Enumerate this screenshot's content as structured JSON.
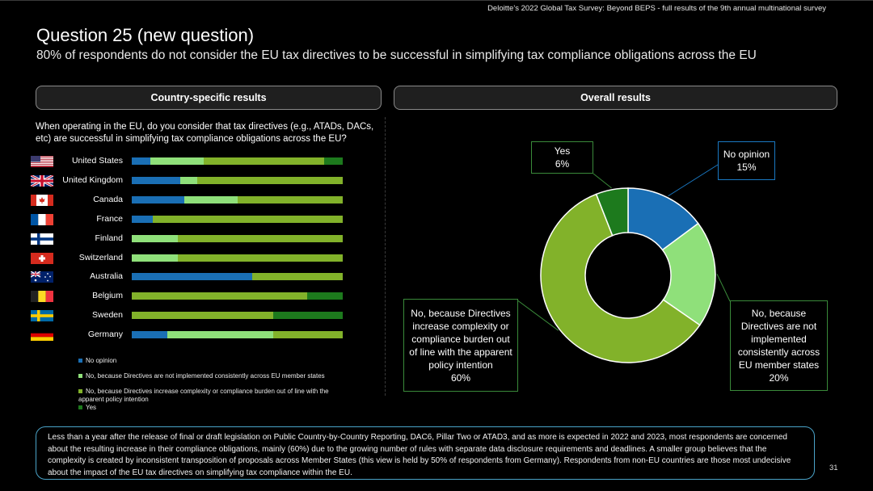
{
  "header": {
    "source": "Deloitte’s 2022 Global Tax Survey: Beyond BEPS  - full results of the 9th annual multinational survey",
    "title": "Question 25 (new question)",
    "subtitle": "80% of respondents do not consider the EU tax directives to be successful in simplifying tax compliance obligations across the EU"
  },
  "left_panel": {
    "heading": "Country-specific results",
    "question": "When operating in the EU, do you consider that tax directives (e.g., ATADs, DACs, etc) are successful in simplifying tax compliance obligations across the EU?"
  },
  "right_panel": {
    "heading": "Overall results"
  },
  "colors": {
    "no_opinion": "#1a6fb5",
    "not_implemented": "#8fe07a",
    "complexity": "#82b22a",
    "yes": "#1d7a1d"
  },
  "chart_data": [
    {
      "type": "bar",
      "orientation": "horizontal",
      "stacked": "100%",
      "categories": [
        "United States",
        "United Kingdom",
        "Canada",
        "France",
        "Finland",
        "Switzerland",
        "Australia",
        "Belgium",
        "Sweden",
        "Germany"
      ],
      "flags": [
        "us-flag-icon",
        "uk-flag-icon",
        "canada-flag-icon",
        "france-flag-icon",
        "finland-flag-icon",
        "switzerland-flag-icon",
        "australia-flag-icon",
        "belgium-flag-icon",
        "sweden-flag-icon",
        "germany-flag-icon"
      ],
      "series": [
        {
          "name": "No opinion",
          "key": "no_opinion",
          "values": [
            9,
            23,
            25,
            10,
            0,
            0,
            57,
            0,
            0,
            17
          ]
        },
        {
          "name": "No, because Directives are not implemented consistently across EU member states",
          "key": "not_implemented",
          "values": [
            25,
            8,
            25,
            0,
            22,
            22,
            0,
            0,
            0,
            50
          ]
        },
        {
          "name": "No, because Directives increase complexity or compliance burden out of line with the apparent policy intention",
          "key": "complexity",
          "values": [
            57,
            69,
            50,
            90,
            78,
            78,
            43,
            83,
            67,
            33
          ]
        },
        {
          "name": "Yes",
          "key": "yes",
          "values": [
            9,
            0,
            0,
            0,
            0,
            0,
            0,
            17,
            33,
            0
          ]
        }
      ],
      "legend_position": "bottom"
    },
    {
      "type": "pie",
      "variant": "donut",
      "slices": [
        {
          "label": "No opinion",
          "value": 15,
          "value_label": "15%",
          "key": "no_opinion"
        },
        {
          "label": "No, because Directives are not implemented consistently across EU member states",
          "value": 20,
          "value_label": "20%",
          "key": "not_implemented"
        },
        {
          "label": "No, because Directives increase complexity or compliance burden out of line with the apparent policy intention",
          "value": 60,
          "value_label": "60%",
          "key": "complexity"
        },
        {
          "label": "Yes",
          "value": 6,
          "value_label": "6%",
          "key": "yes"
        }
      ]
    }
  ],
  "footer_text": "Less than a year after the release of final or draft legislation on Public Country-by-Country Reporting, DAC6, Pillar Two or ATAD3, and as more is expected in 2022 and 2023, most respondents are concerned about the resulting increase in their compliance obligations, mainly (60%) due to the growing number of rules with separate data disclosure requirements and deadlines. A smaller group believes that the complexity is created by inconsistent transposition of proposals across Member States (this view is held by 50% of respondents from Germany). Respondents from non-EU countries are those most undecisive about the impact of the EU tax directives on simplifying tax compliance within the EU.",
  "page_number": "31"
}
